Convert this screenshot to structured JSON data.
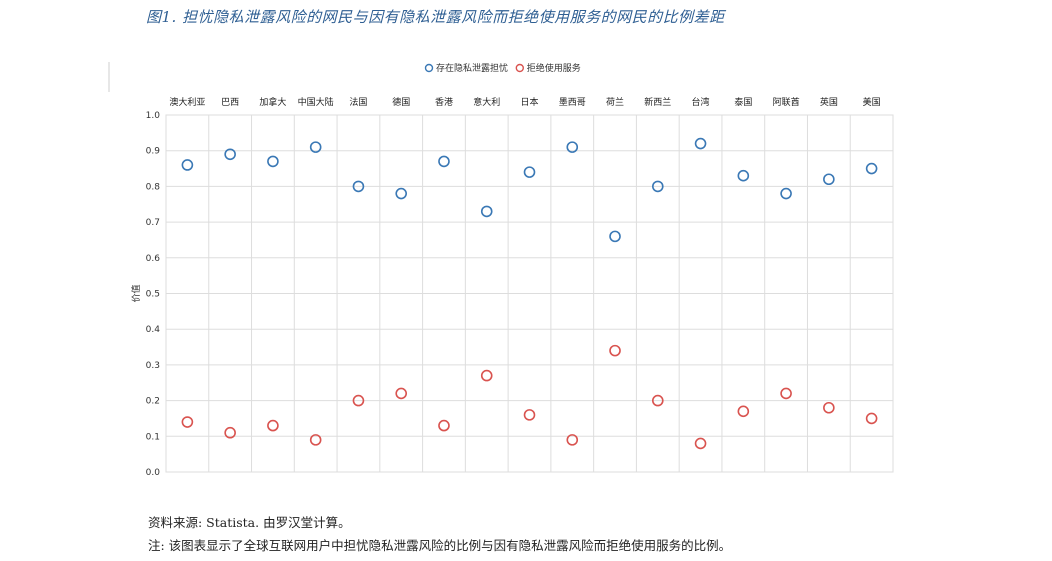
{
  "figure": {
    "title": "图1.  担忧隐私泄露风险的网民与因有隐私泄露风险而拒绝使用服务的网民的比例差距",
    "source": "资料来源: Statista. 由罗汉堂计算。",
    "note": "注: 该图表显示了全球互联网用户中担忧隐私泄露风险的比例与因有隐私泄露风险而拒绝使用服务的比例。"
  },
  "colors": {
    "series_concern": "#3a78b5",
    "series_refuse": "#d9534f",
    "grid": "#dddddd"
  },
  "chart_data": {
    "type": "scatter",
    "title": "",
    "xlabel": "",
    "ylabel": "价值",
    "ylim": [
      0,
      1.0
    ],
    "yticks": [
      "0.0",
      "0.1",
      "0.2",
      "0.3",
      "0.4",
      "0.5",
      "0.6",
      "0.7",
      "0.8",
      "0.9",
      "1.0"
    ],
    "grid": true,
    "legend_position": "top-center",
    "categories": [
      "澳大利亚",
      "巴西",
      "加拿大",
      "中国大陆",
      "法国",
      "德国",
      "香港",
      "意大利",
      "日本",
      "墨西哥",
      "荷兰",
      "新西兰",
      "台湾",
      "泰国",
      "阿联酋",
      "英国",
      "美国"
    ],
    "series": [
      {
        "name": "存在隐私泄露担忧",
        "values": [
          0.86,
          0.89,
          0.87,
          0.91,
          0.8,
          0.78,
          0.87,
          0.73,
          0.84,
          0.91,
          0.66,
          0.8,
          0.92,
          0.83,
          0.78,
          0.82,
          0.85
        ]
      },
      {
        "name": "拒绝使用服务",
        "values": [
          0.14,
          0.11,
          0.13,
          0.09,
          0.2,
          0.22,
          0.13,
          0.27,
          0.16,
          0.09,
          0.34,
          0.2,
          0.08,
          0.17,
          0.22,
          0.18,
          0.15
        ]
      }
    ]
  }
}
